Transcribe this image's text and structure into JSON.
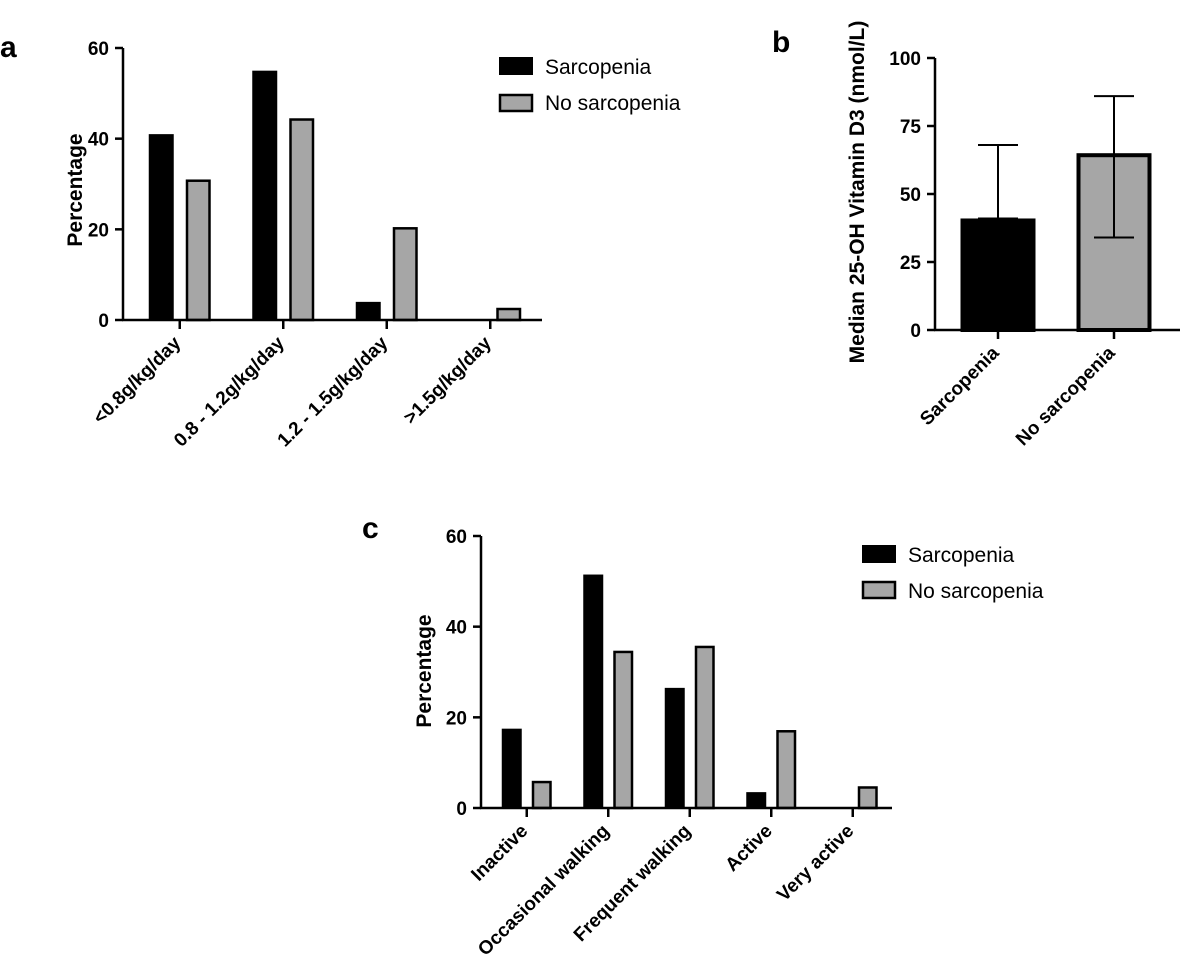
{
  "colors": {
    "sarcopenia": "#000000",
    "no_sarcopenia": "#a6a6a6",
    "axis": "#000000"
  },
  "chart_data": [
    {
      "panel": "a",
      "type": "bar",
      "ylabel": "Percentage",
      "xlabel": "",
      "ylim": [
        0,
        60
      ],
      "yticks": [
        0,
        20,
        40,
        60
      ],
      "legend": "top-right",
      "categories": [
        "<0.8g/kg/day",
        "0.8 - 1.2g/kg/day",
        "1.2 - 1.5g/kg/day",
        ">1.5g/kg/day"
      ],
      "series": [
        {
          "name": "Sarcopenia",
          "values": [
            41,
            55,
            4,
            0
          ]
        },
        {
          "name": "No sarcopenia",
          "values": [
            31,
            44.5,
            20.5,
            2.7
          ]
        }
      ]
    },
    {
      "panel": "b",
      "type": "bar",
      "ylabel": "Median 25-OH  Vitamin  D3 (nmol/L)",
      "xlabel": "",
      "ylim": [
        0,
        100
      ],
      "yticks": [
        0,
        25,
        50,
        75,
        100
      ],
      "categories": [
        "Sarcopenia",
        "No sarcopenia"
      ],
      "values": [
        41,
        65
      ],
      "error_low": [
        41,
        34
      ],
      "error_high": [
        68,
        86
      ]
    },
    {
      "panel": "c",
      "type": "bar",
      "ylabel": "Percentage",
      "xlabel": "",
      "ylim": [
        0,
        60
      ],
      "yticks": [
        0,
        20,
        40,
        60
      ],
      "legend": "top-right",
      "categories": [
        "Inactive",
        "Occasional walking",
        "Frequent walking",
        "Active",
        "Very active"
      ],
      "series": [
        {
          "name": "Sarcopenia",
          "values": [
            17.5,
            51.5,
            26.5,
            3.5,
            0
          ]
        },
        {
          "name": "No sarcopenia",
          "values": [
            6,
            34.7,
            35.8,
            17.2,
            4.8
          ]
        }
      ]
    }
  ]
}
